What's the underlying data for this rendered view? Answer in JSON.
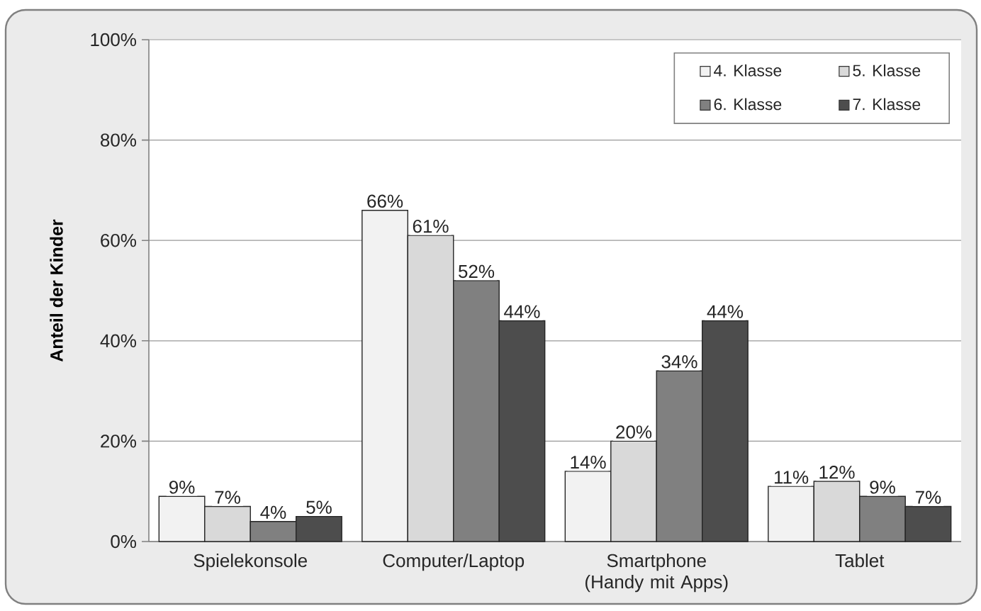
{
  "chart_data": {
    "type": "bar",
    "ylabel": "Anteil der Kinder",
    "categories": [
      "Spielekonsole",
      "Computer/Laptop",
      "Smartphone (Handy mit Apps)",
      "Tablet"
    ],
    "series": [
      {
        "name": "4. Klasse",
        "color": "#f2f2f2",
        "values": [
          9,
          66,
          14,
          11
        ],
        "value_labels": [
          "9%",
          "66%",
          "14%",
          "11%"
        ]
      },
      {
        "name": "5. Klasse",
        "color": "#d9d9d9",
        "values": [
          7,
          61,
          20,
          12
        ],
        "value_labels": [
          "7%",
          "61%",
          "20%",
          "12%"
        ]
      },
      {
        "name": "6. Klasse",
        "color": "#808080",
        "values": [
          4,
          52,
          34,
          9
        ],
        "value_labels": [
          "4%",
          "52%",
          "34%",
          "9%"
        ]
      },
      {
        "name": "7. Klasse",
        "color": "#4d4d4d",
        "values": [
          5,
          44,
          44,
          7
        ],
        "value_labels": [
          "5%",
          "44%",
          "44%",
          "7%"
        ]
      }
    ],
    "ylim": [
      0,
      100
    ],
    "yticks": [
      {
        "value": 0,
        "label": "0%"
      },
      {
        "value": 20,
        "label": "20%"
      },
      {
        "value": 40,
        "label": "40%"
      },
      {
        "value": 60,
        "label": "60%"
      },
      {
        "value": 80,
        "label": "80%"
      },
      {
        "value": 100,
        "label": "100%"
      }
    ],
    "grid": "y",
    "legend": "top right"
  }
}
